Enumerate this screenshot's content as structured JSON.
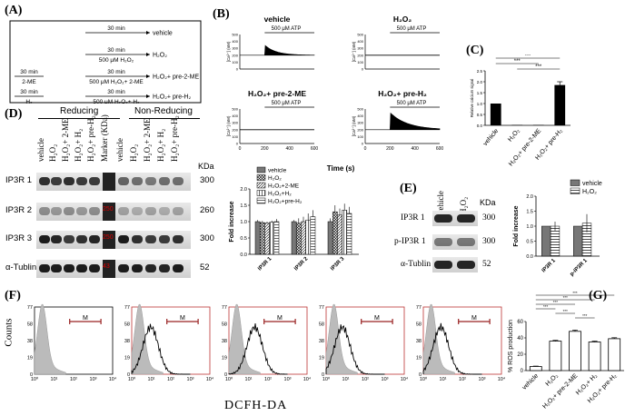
{
  "panel_A": {
    "letter": "(A)",
    "rows": [
      {
        "pre_time": "",
        "pre_agent": "",
        "time": "30 min",
        "agent": "",
        "result": "vehicle"
      },
      {
        "pre_time": "",
        "pre_agent": "",
        "time": "30 min",
        "agent": "500 μM H₂O₂",
        "result": "H₂O₂"
      },
      {
        "pre_time": "30 min",
        "pre_agent": "2-ME",
        "time": "30 min",
        "agent": "500 μM H₂O₂+ 2-ME",
        "result": "H₂O₂+ pre-2-ME"
      },
      {
        "pre_time": "30 min",
        "pre_agent": "H₂",
        "time": "30 min",
        "agent": "500 μM H₂O₂+ H₂",
        "result": "H₂O₂+ pre-H₂"
      }
    ]
  },
  "panel_B": {
    "letter": "(B)",
    "stim": "500 μM ATP",
    "ylabel": "[Ca²⁺] (nM)",
    "xlabel": "Time (s)",
    "xticks": [
      "0",
      "200",
      "400",
      "600"
    ],
    "yticks": [
      "0",
      "100",
      "200",
      "300",
      "400",
      "500"
    ],
    "traces": [
      {
        "title": "vehicle",
        "baseline": 200,
        "peak": 340
      },
      {
        "title": "H₂O₂",
        "baseline": 200,
        "peak": 200
      },
      {
        "title": "H₂O₂+ pre-2-ME",
        "baseline": 200,
        "peak": 200
      },
      {
        "title": "H₂O₂+ pre-H₂",
        "baseline": 200,
        "peak": 440
      }
    ]
  },
  "panel_C": {
    "letter": "(C)",
    "chart_data": {
      "type": "bar",
      "categories": [
        "vehicle",
        "H₂O₂",
        "H₂O₂+ pre-2-ME",
        "H₂O₂+ pre-H₂"
      ],
      "values": [
        1.0,
        0.02,
        0.02,
        1.85
      ],
      "errors": [
        0.0,
        0.0,
        0.0,
        0.15
      ],
      "ylabel": "Relative calcium signal",
      "ylim": [
        0,
        2.5
      ],
      "yticks": [
        "0.0",
        "0.5",
        "1.0",
        "1.5",
        "2.0",
        "2.5"
      ],
      "sig": "***"
    }
  },
  "panel_D": {
    "letter": "(D)",
    "group_reducing": "Reducing",
    "group_nonreducing": "Non-Reducing",
    "lanes": [
      "vehicle",
      "H₂O₂",
      "H₂O₂+ 2-ME",
      "H₂O₂+ H₂",
      "H₂O₂+ pre-H₂",
      "Marker (KDa)",
      "vehicle",
      "H₂O₂",
      "H₂O₂+ 2-ME",
      "H₂O₂+ H₂",
      "H₂O₂+ pre-H₂"
    ],
    "kda_header": "KDa",
    "rows": [
      {
        "label": "IP3R 1",
        "kda": "300",
        "marker": ""
      },
      {
        "label": "IP3R 2",
        "kda": "260",
        "marker": "250"
      },
      {
        "label": "IP3R 3",
        "kda": "300",
        "marker": "250"
      },
      {
        "label": "α-Tublin",
        "kda": "52",
        "marker": "43"
      }
    ],
    "chart_data": {
      "type": "bar",
      "categories": [
        "IP3R 1",
        "IP3R 2",
        "IP3R 3"
      ],
      "series": [
        {
          "name": "vehicle",
          "values": [
            1.0,
            1.0,
            1.0
          ],
          "errors": [
            0.05,
            0.05,
            0.1
          ]
        },
        {
          "name": "H₂O₂",
          "values": [
            0.97,
            0.95,
            1.3
          ],
          "errors": [
            0.05,
            0.15,
            0.2
          ]
        },
        {
          "name": "H₂O₂+2-ME",
          "values": [
            0.95,
            1.0,
            1.2
          ],
          "errors": [
            0.05,
            0.15,
            0.2
          ]
        },
        {
          "name": "H₂O₂+H₂",
          "values": [
            0.98,
            1.05,
            1.35
          ],
          "errors": [
            0.05,
            0.2,
            0.2
          ]
        },
        {
          "name": "H₂O₂+pre-H₂",
          "values": [
            1.0,
            1.15,
            1.25
          ],
          "errors": [
            0.08,
            0.2,
            0.2
          ]
        }
      ],
      "ylabel": "Fold increase",
      "ylim": [
        0,
        2.0
      ],
      "yticks": [
        "0.0",
        "0.5",
        "1.0",
        "1.5",
        "2.0"
      ]
    }
  },
  "panel_E": {
    "letter": "(E)",
    "lanes": [
      "vehicle",
      "H₂O₂"
    ],
    "kda_header": "KDa",
    "rows": [
      {
        "label": "IP3R 1",
        "kda": "300"
      },
      {
        "label": "p-IP3R 1",
        "kda": "300"
      },
      {
        "label": "α-Tublin",
        "kda": "52"
      }
    ],
    "chart_data": {
      "type": "bar",
      "categories": [
        "IP3R 1",
        "p-IP3R 1"
      ],
      "series": [
        {
          "name": "vehicle",
          "values": [
            1.0,
            1.0
          ],
          "errors": [
            0.0,
            0.0
          ]
        },
        {
          "name": "H₂O₂",
          "values": [
            1.0,
            1.1
          ],
          "errors": [
            0.15,
            0.3
          ]
        }
      ],
      "ylabel": "Fold increase",
      "ylim": [
        0,
        2.0
      ],
      "yticks": [
        "0.0",
        "0.5",
        "1.0",
        "1.5",
        "2.0"
      ]
    }
  },
  "panel_F": {
    "letter": "(F)",
    "ylabel": "Counts",
    "xlabel": "DCFH-DA",
    "gate": "M",
    "ytick_labels": [
      "0",
      "19",
      "38",
      "58",
      "77"
    ],
    "xtick_labels": [
      "10⁰",
      "10¹",
      "10²",
      "10³",
      "10⁴"
    ],
    "histograms": [
      {
        "shift": 0.0,
        "gray_only": true
      },
      {
        "shift": 0.35
      },
      {
        "shift": 0.6
      },
      {
        "shift": 0.25
      },
      {
        "shift": 0.3
      }
    ]
  },
  "panel_G": {
    "letter": "(G)",
    "chart_data": {
      "type": "bar",
      "categories": [
        "vehicle",
        "H₂O₂",
        "H₂O₂+ pre-2-ME",
        "H₂O₂+ H₂",
        "H₂O₂+ pre-H₂"
      ],
      "values": [
        5,
        36,
        48,
        35,
        39
      ],
      "errors": [
        0.5,
        1.0,
        1.5,
        1.0,
        1.2
      ],
      "ylabel": "% ROS production",
      "ylim": [
        0,
        60
      ],
      "yticks": [
        "0",
        "20",
        "40",
        "60"
      ],
      "sig": "***"
    }
  }
}
